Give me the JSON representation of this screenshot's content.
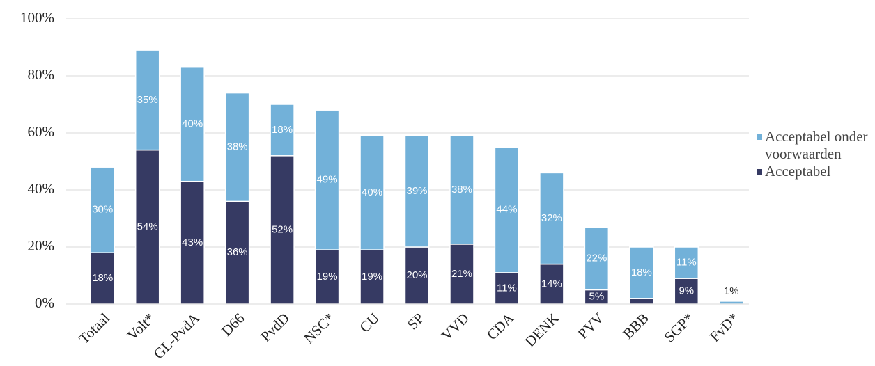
{
  "chart_data": {
    "type": "stacked_bar",
    "categories": [
      "Totaal",
      "Volt*",
      "GL-PvdA",
      "D66",
      "PvdD",
      "NSC*",
      "CU",
      "SP",
      "VVD",
      "CDA",
      "DENK",
      "PVV",
      "BBB",
      "SGP*",
      "FvD*"
    ],
    "series": [
      {
        "name": "Acceptabel",
        "color": "#363a63",
        "values": [
          18,
          54,
          43,
          36,
          52,
          19,
          19,
          20,
          21,
          11,
          14,
          5,
          2,
          9,
          null
        ],
        "value_labels": [
          "18%",
          "54%",
          "43%",
          "36%",
          "52%",
          "19%",
          "19%",
          "20%",
          "21%",
          "11%",
          "14%",
          "5%",
          "2%",
          "9%",
          null
        ]
      },
      {
        "name": "Acceptabel onder voorwaarden",
        "color": "#72b1d9",
        "values": [
          30,
          35,
          40,
          38,
          18,
          49,
          40,
          39,
          38,
          44,
          32,
          22,
          18,
          11,
          1
        ],
        "value_labels": [
          "30%",
          "35%",
          "40%",
          "38%",
          "18%",
          "49%",
          "40%",
          "39%",
          "38%",
          "44%",
          "32%",
          "22%",
          "18%",
          "11%",
          "1%"
        ]
      }
    ],
    "ylim": [
      0,
      100
    ],
    "yticks": [
      {
        "value": 0,
        "label": "0%"
      },
      {
        "value": 20,
        "label": "20%"
      },
      {
        "value": 40,
        "label": "40%"
      },
      {
        "value": 60,
        "label": "60%"
      },
      {
        "value": 80,
        "label": "80%"
      },
      {
        "value": 100,
        "label": "100%"
      }
    ],
    "grid": true,
    "legend": "right"
  }
}
